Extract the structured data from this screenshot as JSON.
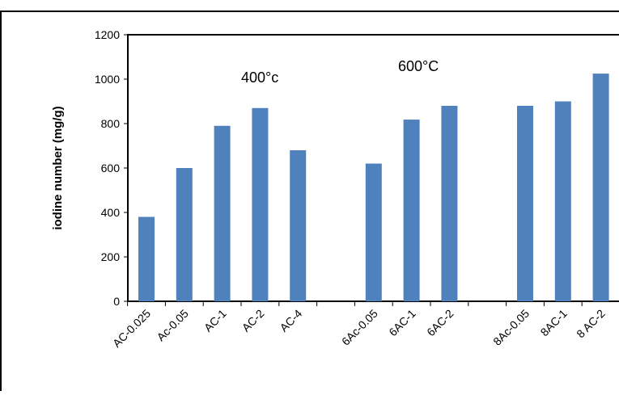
{
  "chart_data": {
    "type": "bar",
    "title": "",
    "xlabel": "",
    "ylabel": "iodine number (mg/g)",
    "ylim": [
      0,
      1200
    ],
    "yticks": [
      0,
      200,
      400,
      600,
      800,
      1000,
      1200
    ],
    "grid": false,
    "bar_color": "#4f81bd",
    "categories": [
      "AC-0.025",
      "Ac-0.05",
      "AC-1",
      "AC-2",
      "AC-4",
      "",
      "6Ac-0.05",
      "6AC-1",
      "6AC-2",
      "",
      "8Ac-0.05",
      "8AC-1",
      "8 AC-2"
    ],
    "values": [
      380,
      600,
      790,
      870,
      680,
      null,
      620,
      818,
      880,
      null,
      880,
      900,
      1025
    ],
    "annotations": [
      "400°c",
      "600°C"
    ]
  }
}
